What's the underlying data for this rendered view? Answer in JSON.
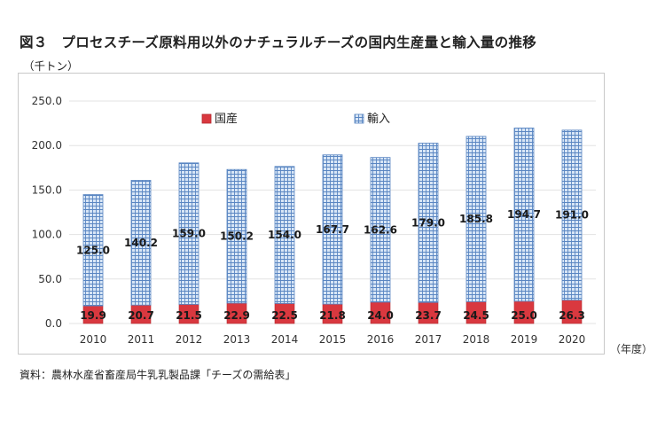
{
  "title": "図３　プロセスチーズ原料用以外のナチュラルチーズの国内生産量と輸入量の推移",
  "unit_label": "（千トン）",
  "x_unit_label": "（年度）",
  "source": "資料：農林水産省畜産局牛乳乳製品課「チーズの需給表」",
  "colors": {
    "domestic": "#d9383f",
    "import_fill": "#d8e6f6",
    "import_grid": "#5a86c2",
    "gridline": "#e3e3e3"
  },
  "chart_data": {
    "type": "bar",
    "stacked": true,
    "categories": [
      "2010",
      "2011",
      "2012",
      "2013",
      "2014",
      "2015",
      "2016",
      "2017",
      "2018",
      "2019",
      "2020"
    ],
    "series": [
      {
        "name": "国産",
        "values": [
          19.9,
          20.7,
          21.5,
          22.9,
          22.5,
          21.8,
          24.0,
          23.7,
          24.5,
          25.0,
          26.3
        ],
        "labels": [
          "19.9",
          "20.7",
          "21.5",
          "22.9",
          "22.5",
          "21.8",
          "24.0",
          "23.7",
          "24.5",
          "25.0",
          "26.3"
        ]
      },
      {
        "name": "輸入",
        "values": [
          125.0,
          140.2,
          159.0,
          150.2,
          154.0,
          167.7,
          162.6,
          179.0,
          185.8,
          194.7,
          191.0
        ],
        "labels": [
          "125.0",
          "140.2",
          "159.0",
          "150.2",
          "154.0",
          "167.7",
          "162.6",
          "179.0",
          "185.8",
          "194.7",
          "191.0"
        ]
      }
    ],
    "yticks": [
      "0.0",
      "50.0",
      "100.0",
      "150.0",
      "200.0",
      "250.0"
    ],
    "ylim": [
      0,
      250
    ],
    "grid": true,
    "legend_position": "top"
  }
}
